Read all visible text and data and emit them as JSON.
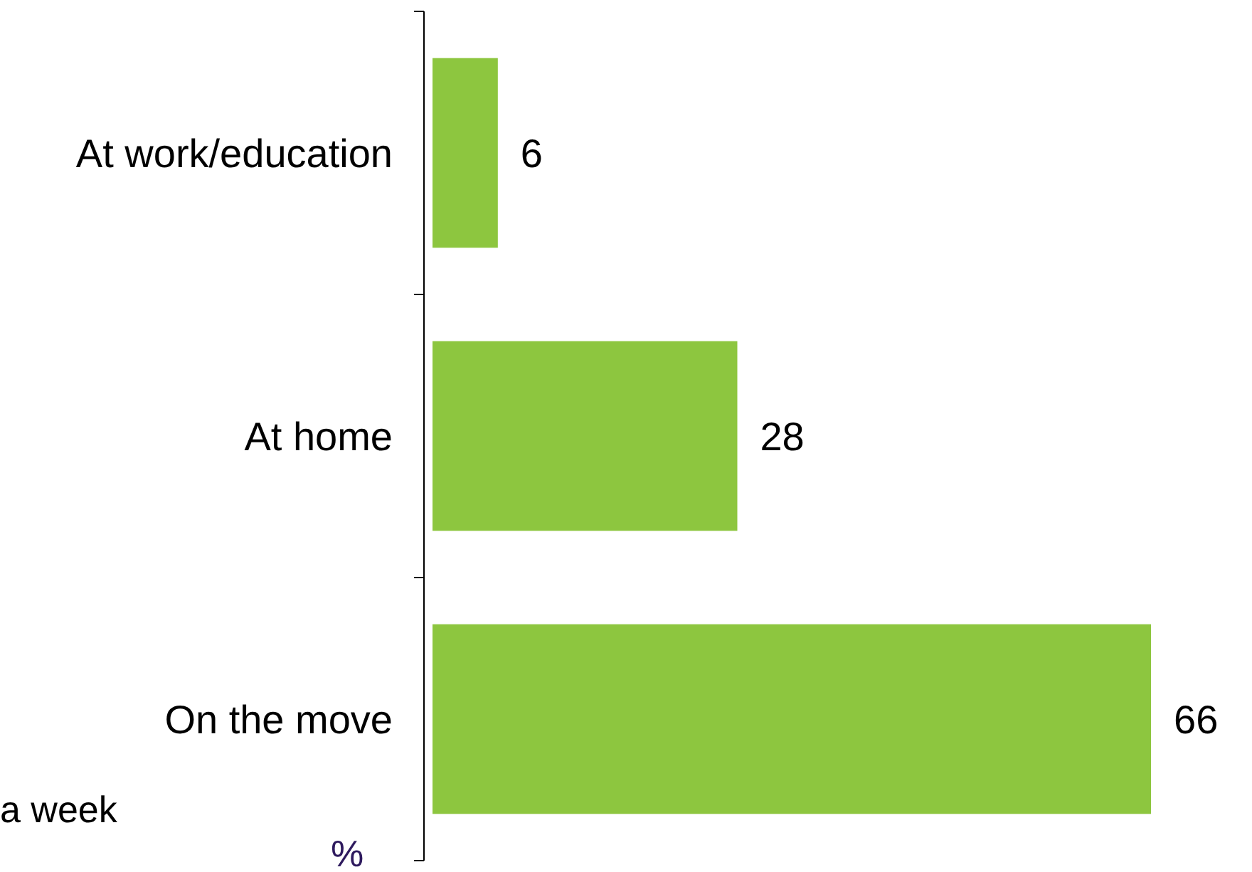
{
  "chart_data": {
    "type": "bar",
    "orientation": "horizontal",
    "categories": [
      "At work/education",
      "At home",
      "On the move"
    ],
    "values": [
      6,
      28,
      66
    ],
    "color": "#8dc63f",
    "data_labels": true,
    "annotations": [
      "a week",
      "%"
    ]
  }
}
